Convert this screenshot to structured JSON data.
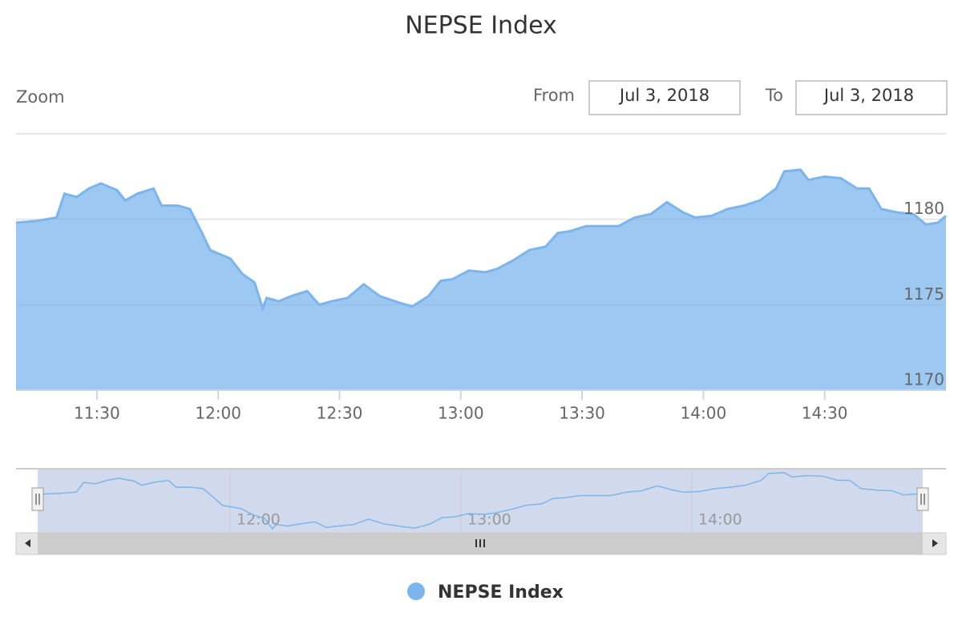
{
  "chart_data": {
    "type": "area",
    "title": "NEPSE Index",
    "x": [
      "11:10",
      "11:15",
      "11:20",
      "11:22",
      "11:25",
      "11:28",
      "11:31",
      "11:35",
      "11:37",
      "11:40",
      "11:44",
      "11:46",
      "11:50",
      "11:53",
      "11:56",
      "11:58",
      "12:00",
      "12:03",
      "12:06",
      "12:09",
      "12:11",
      "12:12",
      "12:15",
      "12:18",
      "12:22",
      "12:25",
      "12:28",
      "12:32",
      "12:36",
      "12:40",
      "12:45",
      "12:48",
      "12:52",
      "12:55",
      "12:58",
      "13:02",
      "13:06",
      "13:09",
      "13:13",
      "13:17",
      "13:21",
      "13:24",
      "13:27",
      "13:31",
      "13:35",
      "13:39",
      "13:43",
      "13:47",
      "13:51",
      "13:55",
      "13:58",
      "14:02",
      "14:06",
      "14:10",
      "14:14",
      "14:18",
      "14:20",
      "14:24",
      "14:26",
      "14:30",
      "14:34",
      "14:38",
      "14:41",
      "14:44",
      "14:48",
      "14:52",
      "14:55",
      "14:58",
      "15:00"
    ],
    "series": [
      {
        "name": "NEPSE Index",
        "color": "#7cb5ec",
        "values": [
          1179.8,
          1179.9,
          1180.1,
          1181.5,
          1181.3,
          1181.8,
          1182.1,
          1181.7,
          1181.1,
          1181.5,
          1181.8,
          1180.8,
          1180.8,
          1180.6,
          1179.2,
          1178.2,
          1178.0,
          1177.7,
          1176.8,
          1176.3,
          1174.8,
          1175.4,
          1175.2,
          1175.5,
          1175.8,
          1175.0,
          1175.2,
          1175.4,
          1176.2,
          1175.5,
          1175.1,
          1174.9,
          1175.5,
          1176.4,
          1176.5,
          1177.0,
          1176.9,
          1177.1,
          1177.6,
          1178.2,
          1178.4,
          1179.2,
          1179.3,
          1179.6,
          1179.6,
          1179.6,
          1180.1,
          1180.3,
          1181.0,
          1180.4,
          1180.1,
          1180.2,
          1180.6,
          1180.8,
          1181.1,
          1181.8,
          1182.8,
          1182.9,
          1182.3,
          1182.5,
          1182.4,
          1181.8,
          1181.8,
          1180.6,
          1180.4,
          1180.3,
          1179.7,
          1179.8,
          1180.2
        ]
      }
    ],
    "xlim": [
      "11:10",
      "15:00"
    ],
    "xticks": [
      "11:30",
      "12:00",
      "12:30",
      "13:00",
      "13:30",
      "14:00",
      "14:30"
    ],
    "ylim": [
      1170,
      1185
    ],
    "yticks": [
      1170,
      1175,
      1180
    ],
    "grid": true,
    "navigator_xticks": [
      "12:00",
      "13:00",
      "14:00"
    ]
  },
  "range_selector": {
    "zoom_label": "Zoom",
    "from_label": "From",
    "from_date": "Jul 3, 2018",
    "to_label": "To",
    "to_date": "Jul 3, 2018"
  }
}
